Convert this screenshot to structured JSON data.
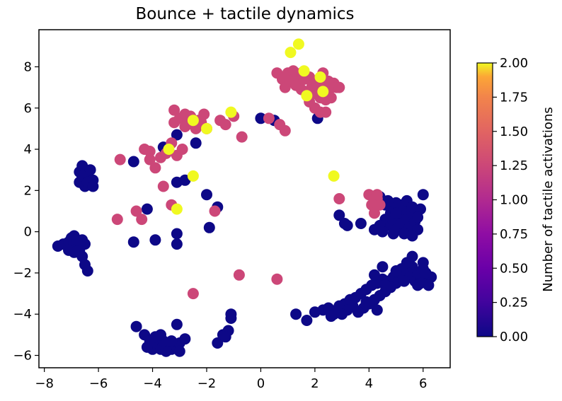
{
  "chart_data": {
    "type": "scatter",
    "title": "Bounce + tactile dynamics",
    "xlabel": "",
    "ylabel": "",
    "xlim": [
      -8.2,
      7.0
    ],
    "ylim": [
      -6.6,
      9.8
    ],
    "xticks": [
      -8,
      -6,
      -4,
      -2,
      0,
      2,
      4,
      6
    ],
    "yticks": [
      -6,
      -4,
      -2,
      0,
      2,
      4,
      6,
      8
    ],
    "grid": false,
    "colormap": "plasma",
    "colorbar": {
      "label": "Number of tactile activations",
      "min": 0.0,
      "max": 2.0,
      "ticks": [
        "0.00",
        "0.25",
        "0.50",
        "0.75",
        "1.00",
        "1.25",
        "1.50",
        "1.75",
        "2.00"
      ]
    },
    "colors": {
      "0": "#0d0887",
      "1": "#cc4778",
      "2": "#f0f921"
    },
    "points": [
      [
        -7.5,
        -0.7,
        0
      ],
      [
        -7.3,
        -0.6,
        0
      ],
      [
        -7.1,
        -0.5,
        0
      ],
      [
        -7.0,
        -0.3,
        0
      ],
      [
        -6.9,
        -0.5,
        0
      ],
      [
        -6.8,
        -0.7,
        0
      ],
      [
        -7.0,
        -0.8,
        0
      ],
      [
        -6.9,
        -0.2,
        0
      ],
      [
        -6.7,
        -0.9,
        0
      ],
      [
        -6.6,
        -1.2,
        0
      ],
      [
        -6.5,
        -1.6,
        0
      ],
      [
        -6.4,
        -1.9,
        0
      ],
      [
        -6.5,
        -0.6,
        0
      ],
      [
        -6.6,
        -0.4,
        0
      ],
      [
        -6.8,
        -0.4,
        0
      ],
      [
        -7.1,
        -0.9,
        0
      ],
      [
        -6.9,
        -1.0,
        0
      ],
      [
        -6.6,
        3.2,
        0
      ],
      [
        -6.7,
        2.9,
        0
      ],
      [
        -6.6,
        2.6,
        0
      ],
      [
        -6.5,
        2.5,
        0
      ],
      [
        -6.4,
        2.8,
        0
      ],
      [
        -6.3,
        2.3,
        0
      ],
      [
        -6.2,
        2.5,
        0
      ],
      [
        -6.3,
        3.0,
        0
      ],
      [
        -6.5,
        2.2,
        0
      ],
      [
        -6.7,
        2.4,
        0
      ],
      [
        -6.6,
        2.7,
        0
      ],
      [
        -6.4,
        2.4,
        0
      ],
      [
        -6.2,
        2.2,
        0
      ],
      [
        -4.7,
        3.4,
        0
      ],
      [
        -4.2,
        1.1,
        0
      ],
      [
        -4.7,
        -0.5,
        0
      ],
      [
        -3.9,
        -0.4,
        0
      ],
      [
        -3.1,
        -0.1,
        0
      ],
      [
        -3.1,
        -0.6,
        0
      ],
      [
        -3.1,
        2.4,
        0
      ],
      [
        -2.8,
        2.5,
        0
      ],
      [
        -2.0,
        1.8,
        0
      ],
      [
        -1.6,
        1.2,
        0
      ],
      [
        -1.9,
        0.2,
        0
      ],
      [
        -2.4,
        4.3,
        0
      ],
      [
        -3.1,
        4.7,
        0
      ],
      [
        -3.6,
        4.1,
        0
      ],
      [
        0.0,
        5.5,
        0
      ],
      [
        0.5,
        5.4,
        0
      ],
      [
        -4.6,
        -4.6,
        0
      ],
      [
        -4.3,
        -5.0,
        0
      ],
      [
        -4.1,
        -5.3,
        0
      ],
      [
        -4.2,
        -5.6,
        0
      ],
      [
        -4.0,
        -5.7,
        0
      ],
      [
        -3.9,
        -5.4,
        0
      ],
      [
        -3.8,
        -5.6,
        0
      ],
      [
        -3.7,
        -5.7,
        0
      ],
      [
        -3.6,
        -5.5,
        0
      ],
      [
        -3.5,
        -5.8,
        0
      ],
      [
        -3.4,
        -5.6,
        0
      ],
      [
        -3.3,
        -5.7,
        0
      ],
      [
        -3.2,
        -5.5,
        0
      ],
      [
        -3.1,
        -5.6,
        0
      ],
      [
        -3.0,
        -5.4,
        0
      ],
      [
        -2.8,
        -5.2,
        0
      ],
      [
        -3.9,
        -5.1,
        0
      ],
      [
        -3.6,
        -5.3,
        0
      ],
      [
        -3.3,
        -5.3,
        0
      ],
      [
        -3.0,
        -5.8,
        0
      ],
      [
        -3.1,
        -4.5,
        0
      ],
      [
        -3.7,
        -5.0,
        0
      ],
      [
        -1.6,
        -5.4,
        0
      ],
      [
        -1.4,
        -5.0,
        0
      ],
      [
        -1.2,
        -4.8,
        0
      ],
      [
        -1.1,
        -4.2,
        0
      ],
      [
        -1.1,
        -4.0,
        0
      ],
      [
        -1.3,
        -5.1,
        0
      ],
      [
        1.3,
        -4.0,
        0
      ],
      [
        1.7,
        -4.3,
        0
      ],
      [
        2.0,
        -3.9,
        0
      ],
      [
        2.3,
        -3.8,
        0
      ],
      [
        2.5,
        -3.7,
        0
      ],
      [
        2.7,
        -4.0,
        0
      ],
      [
        2.9,
        -3.6,
        0
      ],
      [
        3.1,
        -3.5,
        0
      ],
      [
        3.3,
        -3.3,
        0
      ],
      [
        3.5,
        -3.2,
        0
      ],
      [
        3.7,
        -3.0,
        0
      ],
      [
        3.9,
        -2.8,
        0
      ],
      [
        4.1,
        -2.6,
        0
      ],
      [
        4.3,
        -2.5,
        0
      ],
      [
        4.5,
        -2.3,
        0
      ],
      [
        4.7,
        -2.4,
        0
      ],
      [
        4.9,
        -2.2,
        0
      ],
      [
        5.1,
        -2.1,
        0
      ],
      [
        5.3,
        -2.0,
        0
      ],
      [
        5.5,
        -2.2,
        0
      ],
      [
        5.7,
        -2.4,
        0
      ],
      [
        5.9,
        -2.5,
        0
      ],
      [
        6.1,
        -2.3,
        0
      ],
      [
        6.3,
        -2.2,
        0
      ],
      [
        6.2,
        -2.6,
        0
      ],
      [
        5.8,
        -2.0,
        0
      ],
      [
        5.6,
        -1.7,
        0
      ],
      [
        5.4,
        -1.5,
        0
      ],
      [
        5.2,
        -1.8,
        0
      ],
      [
        5.0,
        -2.5,
        0
      ],
      [
        4.8,
        -2.7,
        0
      ],
      [
        4.6,
        -2.9,
        0
      ],
      [
        4.4,
        -3.1,
        0
      ],
      [
        4.2,
        -3.3,
        0
      ],
      [
        4.0,
        -3.5,
        0
      ],
      [
        3.8,
        -3.7,
        0
      ],
      [
        3.6,
        -3.9,
        0
      ],
      [
        3.4,
        -3.6,
        0
      ],
      [
        3.2,
        -3.8,
        0
      ],
      [
        3.0,
        -4.0,
        0
      ],
      [
        2.8,
        -3.8,
        0
      ],
      [
        2.6,
        -4.1,
        0
      ],
      [
        4.2,
        -2.1,
        0
      ],
      [
        4.5,
        -1.7,
        0
      ],
      [
        5.6,
        -1.2,
        0
      ],
      [
        6.0,
        -1.5,
        0
      ],
      [
        6.0,
        -1.8,
        0
      ],
      [
        5.3,
        -2.4,
        0
      ],
      [
        4.6,
        -2.6,
        0
      ],
      [
        4.3,
        -3.8,
        0
      ],
      [
        3.9,
        -3.4,
        0
      ],
      [
        5.0,
        -1.9,
        0
      ],
      [
        5.8,
        -2.6,
        0
      ],
      [
        6.1,
        -2.0,
        0
      ],
      [
        4.6,
        0.6,
        0
      ],
      [
        4.7,
        0.3,
        0
      ],
      [
        4.8,
        0.9,
        0
      ],
      [
        4.9,
        0.5,
        0
      ],
      [
        5.0,
        0.1,
        0
      ],
      [
        5.1,
        0.8,
        0
      ],
      [
        5.2,
        0.4,
        0
      ],
      [
        5.3,
        1.0,
        0
      ],
      [
        5.4,
        0.6,
        0
      ],
      [
        5.5,
        0.2,
        0
      ],
      [
        5.6,
        0.9,
        0
      ],
      [
        5.7,
        0.5,
        0
      ],
      [
        5.8,
        0.1,
        0
      ],
      [
        5.9,
        1.1,
        0
      ],
      [
        4.8,
        1.2,
        0
      ],
      [
        5.0,
        1.4,
        0
      ],
      [
        5.2,
        1.3,
        0
      ],
      [
        5.4,
        1.5,
        0
      ],
      [
        5.6,
        1.2,
        0
      ],
      [
        5.8,
        0.7,
        0
      ],
      [
        4.9,
        -0.1,
        0
      ],
      [
        5.3,
        -0.1,
        0
      ],
      [
        5.6,
        -0.2,
        0
      ],
      [
        4.4,
        1.7,
        0
      ],
      [
        4.7,
        1.5,
        0
      ],
      [
        4.2,
        0.1,
        0
      ],
      [
        4.4,
        0.3,
        0
      ],
      [
        4.5,
        0.0,
        0
      ],
      [
        4.6,
        1.3,
        0
      ],
      [
        5.0,
        0.9,
        0
      ],
      [
        6.0,
        1.8,
        0
      ],
      [
        2.9,
        0.8,
        0
      ],
      [
        3.1,
        0.4,
        0
      ],
      [
        3.2,
        0.3,
        0
      ],
      [
        3.7,
        0.4,
        0
      ],
      [
        2.1,
        5.5,
        0
      ],
      [
        -5.3,
        0.6,
        1
      ],
      [
        -4.6,
        1.0,
        1
      ],
      [
        -4.4,
        0.6,
        1
      ],
      [
        -3.6,
        2.2,
        1
      ],
      [
        -3.3,
        1.3,
        1
      ],
      [
        -1.7,
        1.0,
        1
      ],
      [
        -5.2,
        3.5,
        1
      ],
      [
        -4.3,
        4.0,
        1
      ],
      [
        -4.1,
        3.9,
        1
      ],
      [
        -4.1,
        3.5,
        1
      ],
      [
        -3.9,
        3.1,
        1
      ],
      [
        -3.7,
        3.6,
        1
      ],
      [
        -3.5,
        3.8,
        1
      ],
      [
        -3.3,
        4.3,
        1
      ],
      [
        -3.1,
        3.7,
        1
      ],
      [
        -2.9,
        4.0,
        1
      ],
      [
        -3.2,
        5.9,
        1
      ],
      [
        -3.2,
        5.3,
        1
      ],
      [
        -3.0,
        5.5,
        1
      ],
      [
        -2.8,
        5.7,
        1
      ],
      [
        -2.8,
        5.1,
        1
      ],
      [
        -2.6,
        5.6,
        1
      ],
      [
        -2.5,
        5.2,
        1
      ],
      [
        -2.3,
        5.4,
        1
      ],
      [
        -2.1,
        5.7,
        1
      ],
      [
        -2.0,
        5.0,
        1
      ],
      [
        -2.2,
        5.3,
        1
      ],
      [
        -2.7,
        5.4,
        1
      ],
      [
        -1.5,
        5.4,
        1
      ],
      [
        -1.3,
        5.2,
        1
      ],
      [
        -1.0,
        5.6,
        1
      ],
      [
        -0.7,
        4.6,
        1
      ],
      [
        0.3,
        5.5,
        1
      ],
      [
        0.7,
        5.2,
        1
      ],
      [
        0.9,
        4.9,
        1
      ],
      [
        -2.4,
        5.0,
        1
      ],
      [
        0.6,
        7.7,
        1
      ],
      [
        0.8,
        7.4,
        1
      ],
      [
        0.9,
        7.0,
        1
      ],
      [
        1.0,
        7.7,
        1
      ],
      [
        1.1,
        7.3,
        1
      ],
      [
        1.2,
        7.8,
        1
      ],
      [
        1.3,
        7.1,
        1
      ],
      [
        1.4,
        7.6,
        1
      ],
      [
        1.5,
        6.9,
        1
      ],
      [
        1.6,
        7.4,
        1
      ],
      [
        1.7,
        6.8,
        1
      ],
      [
        1.8,
        7.5,
        1
      ],
      [
        1.9,
        7.1,
        1
      ],
      [
        2.0,
        6.7,
        1
      ],
      [
        2.1,
        7.2,
        1
      ],
      [
        2.2,
        6.5,
        1
      ],
      [
        2.3,
        7.0,
        1
      ],
      [
        2.4,
        6.4,
        1
      ],
      [
        2.5,
        6.8,
        1
      ],
      [
        2.6,
        6.5,
        1
      ],
      [
        2.7,
        7.2,
        1
      ],
      [
        2.8,
        7.0,
        1
      ],
      [
        2.3,
        7.7,
        1
      ],
      [
        2.0,
        6.0,
        1
      ],
      [
        2.2,
        5.8,
        1
      ],
      [
        1.8,
        6.3,
        1
      ],
      [
        2.5,
        7.3,
        1
      ],
      [
        2.9,
        7.0,
        1
      ],
      [
        1.5,
        7.7,
        1
      ],
      [
        2.4,
        5.8,
        1
      ],
      [
        4.0,
        1.8,
        1
      ],
      [
        4.1,
        1.3,
        1
      ],
      [
        4.2,
        0.9,
        1
      ],
      [
        4.3,
        1.6,
        1
      ],
      [
        4.4,
        1.3,
        1
      ],
      [
        4.3,
        1.8,
        1
      ],
      [
        2.9,
        1.6,
        1
      ],
      [
        -0.8,
        -2.1,
        1
      ],
      [
        0.6,
        -2.3,
        1
      ],
      [
        -2.5,
        -3.0,
        1
      ],
      [
        1.1,
        8.7,
        2
      ],
      [
        1.4,
        9.1,
        2
      ],
      [
        1.6,
        7.8,
        2
      ],
      [
        2.2,
        7.5,
        2
      ],
      [
        1.7,
        6.6,
        2
      ],
      [
        2.3,
        6.8,
        2
      ],
      [
        -1.1,
        5.8,
        2
      ],
      [
        -2.5,
        5.4,
        2
      ],
      [
        -2.0,
        5.0,
        2
      ],
      [
        -3.4,
        4.0,
        2
      ],
      [
        -2.5,
        2.7,
        2
      ],
      [
        2.7,
        2.7,
        2
      ],
      [
        -3.1,
        1.1,
        2
      ]
    ]
  }
}
